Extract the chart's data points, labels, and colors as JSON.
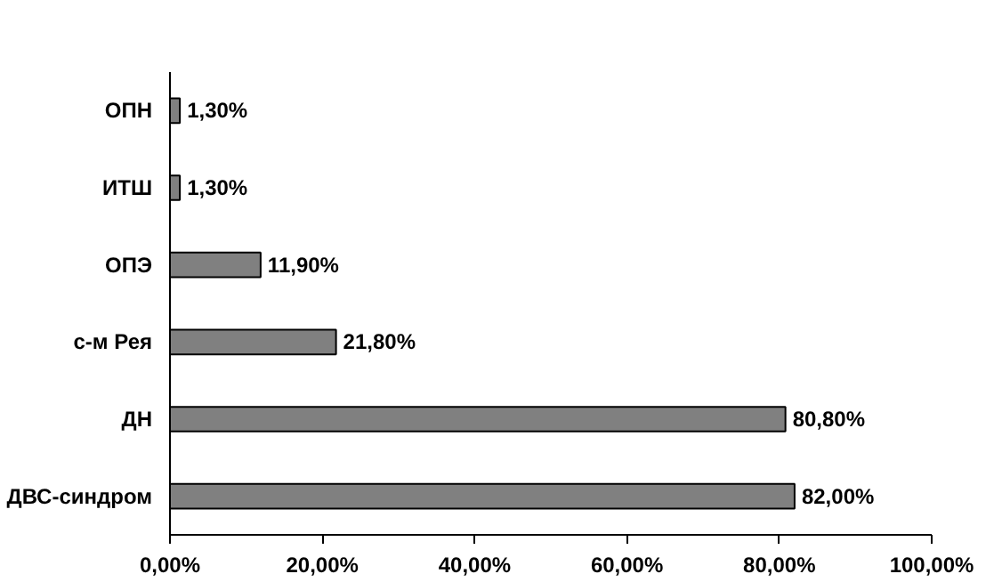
{
  "chart_data": {
    "type": "bar",
    "orientation": "horizontal",
    "categories": [
      "ОПН",
      "ИТШ",
      "ОПЭ",
      "с-м Рея",
      "ДН",
      "ДВС-синдром"
    ],
    "values": [
      1.3,
      1.3,
      11.9,
      21.8,
      80.8,
      82.0
    ],
    "value_labels": [
      "1,30%",
      "1,30%",
      "11,90%",
      "21,80%",
      "80,80%",
      "82,00%"
    ],
    "color": "#808080",
    "xlim": [
      0,
      100
    ],
    "xticks": [
      {
        "value": 0,
        "label": "0,00%"
      },
      {
        "value": 20,
        "label": "20,00%"
      },
      {
        "value": 40,
        "label": "40,00%"
      },
      {
        "value": 60,
        "label": "60,00%"
      },
      {
        "value": 80,
        "label": "80,00%"
      },
      {
        "value": 100,
        "label": "100,00%"
      }
    ],
    "grid": false
  }
}
